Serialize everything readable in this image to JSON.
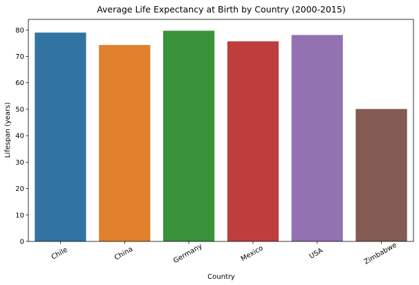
{
  "chart_data": {
    "type": "bar",
    "title": "Average Life Expectancy at Birth by Country (2000-2015)",
    "xlabel": "Country",
    "ylabel": "Lifespan (years)",
    "categories": [
      "Chile",
      "China",
      "Germany",
      "Mexico",
      "USA",
      "Zimbabwe"
    ],
    "values": [
      79.0,
      74.3,
      79.7,
      75.7,
      78.1,
      50.1
    ],
    "colors": [
      "#3274a1",
      "#e1812c",
      "#3a923a",
      "#c03d3e",
      "#9372b2",
      "#845b53"
    ],
    "ylim": [
      0,
      84
    ],
    "yticks": [
      0,
      10,
      20,
      30,
      40,
      50,
      60,
      70,
      80
    ],
    "grid": false,
    "legend": "none"
  }
}
